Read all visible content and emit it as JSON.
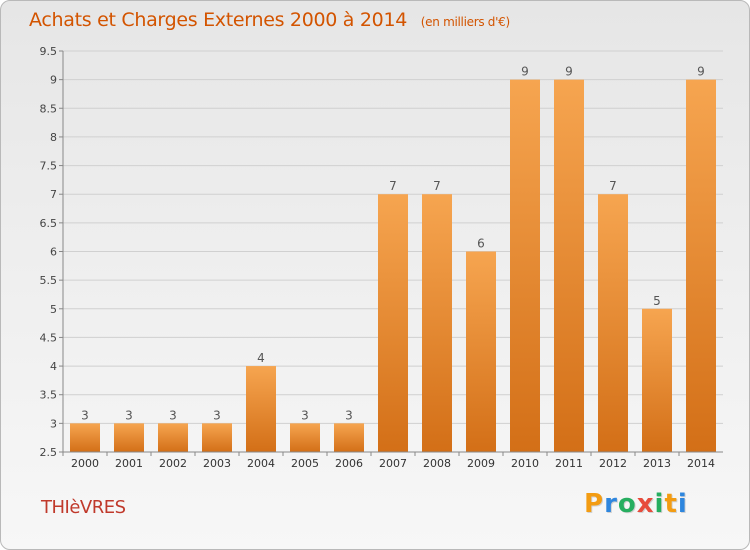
{
  "chart_data": {
    "type": "bar",
    "title": "Achats et Charges Externes 2000 à 2014",
    "subtitle": "(en milliers d'€)",
    "categories": [
      "2000",
      "2001",
      "2002",
      "2003",
      "2004",
      "2005",
      "2006",
      "2007",
      "2008",
      "2009",
      "2010",
      "2011",
      "2012",
      "2013",
      "2014"
    ],
    "values": [
      3,
      3,
      3,
      3,
      4,
      3,
      3,
      7,
      7,
      6,
      9,
      9,
      7,
      5,
      9
    ],
    "value_labels": [
      "3",
      "3",
      "3",
      "3",
      "4",
      "3",
      "3",
      "7",
      "7",
      "6",
      "9",
      "9",
      "7",
      "5",
      "9"
    ],
    "ylim": [
      2.5,
      9.5
    ],
    "yticks": [
      2.5,
      3,
      3.5,
      4,
      4.5,
      5,
      5.5,
      6,
      6.5,
      7,
      7.5,
      8,
      8.5,
      9,
      9.5
    ],
    "ytick_labels": [
      "2.5",
      "3",
      "3.5",
      "4",
      "4.5",
      "5",
      "5.5",
      "6",
      "6.5",
      "7",
      "7.5",
      "8",
      "8.5",
      "9",
      "9.5"
    ],
    "grid": true,
    "bar_color_light": "#f6a550",
    "bar_color_dark": "#d36f17"
  },
  "footer": {
    "town": "THIèVRES",
    "logo_letters": [
      "P",
      "r",
      "o",
      "x",
      "i",
      "t",
      "i"
    ],
    "logo_colors": [
      "#f39c12",
      "#2e86de",
      "#27ae60",
      "#e74c3c",
      "#27ae60",
      "#f39c12",
      "#2e86de"
    ]
  }
}
